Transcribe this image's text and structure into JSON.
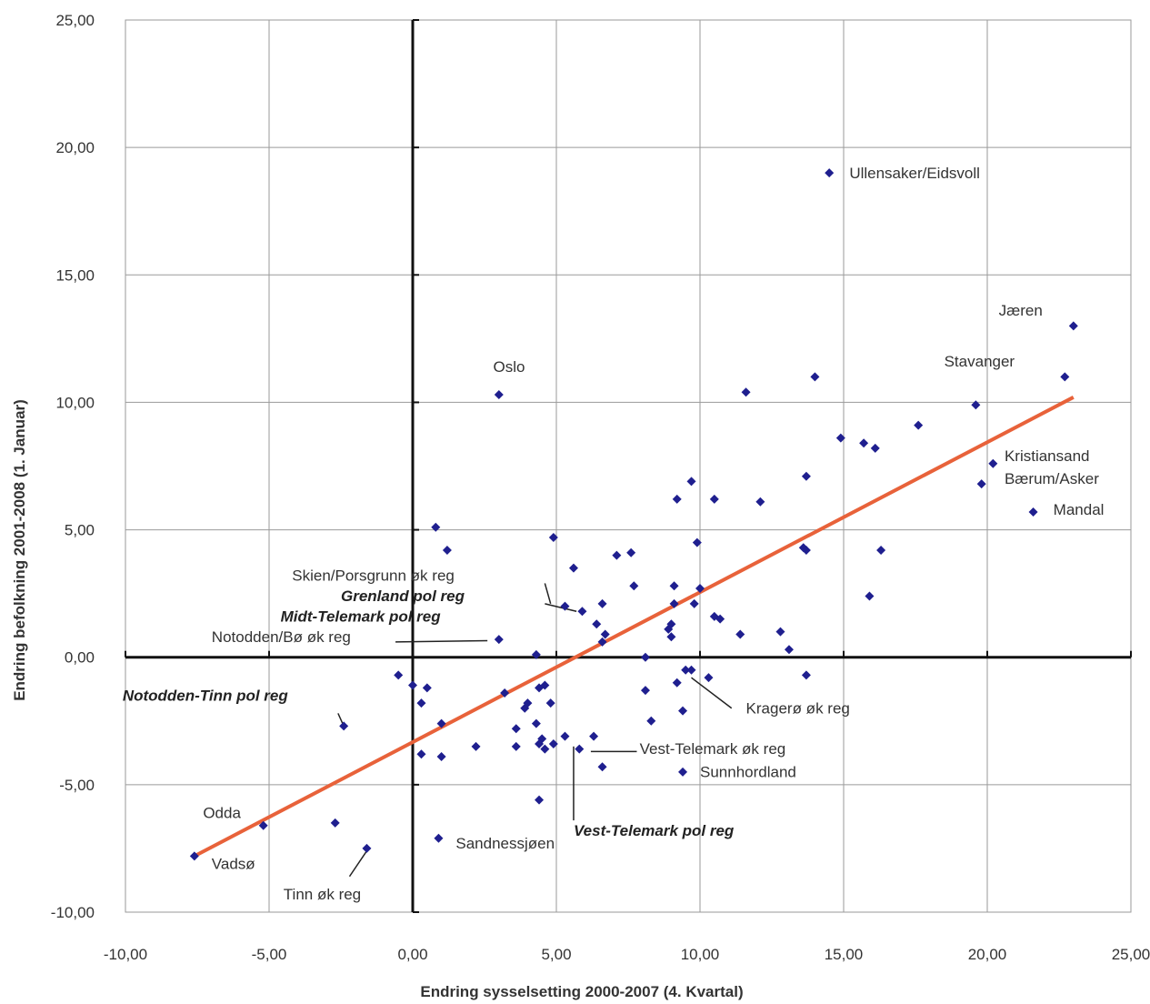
{
  "chart_data": {
    "type": "scatter",
    "title": "",
    "xlabel": "Endring sysselsetting 2000-2007 (4. Kvartal)",
    "ylabel": "Endring befolkning 2001-2008 (1. Januar)",
    "xlim": [
      -10,
      25
    ],
    "ylim": [
      -10,
      25
    ],
    "x_ticks": [
      -10,
      -5,
      0,
      5,
      10,
      15,
      20,
      25
    ],
    "y_ticks": [
      -10,
      -5,
      0,
      5,
      10,
      15,
      20,
      25
    ],
    "x_tick_labels": [
      "-10,00",
      "-5,00",
      "0,00",
      "5,00",
      "10,00",
      "15,00",
      "20,00",
      "25,00"
    ],
    "y_tick_labels": [
      "-10,00",
      "-5,00",
      "0,00",
      "5,00",
      "10,00",
      "15,00",
      "20,00",
      "25,00"
    ],
    "grid": true,
    "marker_color": "#1f1f8f",
    "trendline_color": "#e8623a",
    "trendline": {
      "x": [
        -7.6,
        23
      ],
      "y": [
        -7.8,
        10.2
      ]
    },
    "points": [
      [
        14.5,
        19.0
      ],
      [
        23.0,
        13.0
      ],
      [
        22.7,
        11.0
      ],
      [
        14.0,
        11.0
      ],
      [
        11.6,
        10.4
      ],
      [
        3.0,
        10.3
      ],
      [
        19.6,
        9.9
      ],
      [
        17.6,
        9.1
      ],
      [
        14.9,
        8.6
      ],
      [
        15.7,
        8.4
      ],
      [
        16.1,
        8.2
      ],
      [
        20.2,
        7.6
      ],
      [
        13.7,
        7.1
      ],
      [
        9.7,
        6.9
      ],
      [
        19.8,
        6.8
      ],
      [
        9.2,
        6.2
      ],
      [
        10.5,
        6.2
      ],
      [
        12.1,
        6.1
      ],
      [
        21.6,
        5.7
      ],
      [
        0.8,
        5.1
      ],
      [
        4.9,
        4.7
      ],
      [
        9.9,
        4.5
      ],
      [
        13.6,
        4.3
      ],
      [
        13.7,
        4.2
      ],
      [
        1.2,
        4.2
      ],
      [
        16.3,
        4.2
      ],
      [
        7.6,
        4.1
      ],
      [
        7.1,
        4.0
      ],
      [
        5.6,
        3.5
      ],
      [
        7.7,
        2.8
      ],
      [
        9.1,
        2.8
      ],
      [
        10.0,
        2.7
      ],
      [
        15.9,
        2.4
      ],
      [
        6.6,
        2.1
      ],
      [
        9.1,
        2.1
      ],
      [
        9.8,
        2.1
      ],
      [
        5.3,
        2.0
      ],
      [
        5.9,
        1.8
      ],
      [
        10.5,
        1.6
      ],
      [
        10.7,
        1.5
      ],
      [
        6.4,
        1.3
      ],
      [
        9.0,
        1.3
      ],
      [
        8.9,
        1.1
      ],
      [
        6.7,
        0.9
      ],
      [
        12.8,
        1.0
      ],
      [
        11.4,
        0.9
      ],
      [
        3.0,
        0.7
      ],
      [
        9.0,
        0.8
      ],
      [
        6.6,
        0.6
      ],
      [
        13.1,
        0.3
      ],
      [
        4.3,
        0.1
      ],
      [
        8.1,
        0.0
      ],
      [
        9.5,
        -0.5
      ],
      [
        9.7,
        -0.5
      ],
      [
        10.3,
        -0.8
      ],
      [
        13.7,
        -0.7
      ],
      [
        -0.5,
        -0.7
      ],
      [
        0.0,
        -1.1
      ],
      [
        0.5,
        -1.2
      ],
      [
        4.4,
        -1.2
      ],
      [
        4.6,
        -1.1
      ],
      [
        9.2,
        -1.0
      ],
      [
        8.1,
        -1.3
      ],
      [
        3.2,
        -1.4
      ],
      [
        0.3,
        -1.8
      ],
      [
        4.0,
        -1.8
      ],
      [
        3.9,
        -2.0
      ],
      [
        4.8,
        -1.8
      ],
      [
        9.4,
        -2.1
      ],
      [
        8.3,
        -2.5
      ],
      [
        1.0,
        -2.6
      ],
      [
        4.3,
        -2.6
      ],
      [
        -2.4,
        -2.7
      ],
      [
        3.6,
        -2.8
      ],
      [
        4.5,
        -3.2
      ],
      [
        5.3,
        -3.1
      ],
      [
        6.3,
        -3.1
      ],
      [
        4.4,
        -3.4
      ],
      [
        4.9,
        -3.4
      ],
      [
        3.6,
        -3.5
      ],
      [
        2.2,
        -3.5
      ],
      [
        4.6,
        -3.6
      ],
      [
        5.8,
        -3.6
      ],
      [
        0.3,
        -3.8
      ],
      [
        1.0,
        -3.9
      ],
      [
        6.6,
        -4.3
      ],
      [
        9.4,
        -4.5
      ],
      [
        4.4,
        -5.6
      ],
      [
        -5.2,
        -6.6
      ],
      [
        -2.7,
        -6.5
      ],
      [
        0.9,
        -7.1
      ],
      [
        -1.6,
        -7.5
      ],
      [
        -7.6,
        -7.8
      ]
    ],
    "annotations": [
      {
        "text": "Ullensaker/Eidsvoll",
        "x": 15.2,
        "y": 18.8,
        "bold": false
      },
      {
        "text": "Jæren",
        "x": 20.4,
        "y": 13.4,
        "bold": false
      },
      {
        "text": "Stavanger",
        "x": 18.5,
        "y": 11.4,
        "bold": false
      },
      {
        "text": "Oslo",
        "x": 2.8,
        "y": 11.2,
        "bold": false
      },
      {
        "text": "Kristiansand",
        "x": 20.6,
        "y": 7.7,
        "bold": false
      },
      {
        "text": "Bærum/Asker",
        "x": 20.6,
        "y": 6.8,
        "bold": false
      },
      {
        "text": "Mandal",
        "x": 22.3,
        "y": 5.6,
        "bold": false
      },
      {
        "text": "Skien/Porsgrunn øk reg",
        "x": -4.2,
        "y": 3.0,
        "bold": false
      },
      {
        "text": "Grenland pol reg",
        "x": -2.5,
        "y": 2.2,
        "bold": true
      },
      {
        "text": "Midt-Telemark pol reg",
        "x": -4.6,
        "y": 1.4,
        "bold": true
      },
      {
        "text": "Notodden/Bø øk reg",
        "x": -7.0,
        "y": 0.6,
        "bold": false
      },
      {
        "text": "Notodden-Tinn pol reg",
        "x": -10.1,
        "y": -1.7,
        "bold": true
      },
      {
        "text": "Kragerø øk reg",
        "x": 11.6,
        "y": -2.2,
        "bold": false
      },
      {
        "text": "Vest-Telemark øk reg",
        "x": 7.9,
        "y": -3.8,
        "bold": false
      },
      {
        "text": "Sunnhordland",
        "x": 10.0,
        "y": -4.7,
        "bold": false
      },
      {
        "text": "Vest-Telemark pol reg",
        "x": 5.6,
        "y": -7.0,
        "bold": true
      },
      {
        "text": "Odda",
        "x": -7.3,
        "y": -6.3,
        "bold": false
      },
      {
        "text": "Vadsø",
        "x": -7.0,
        "y": -8.3,
        "bold": false
      },
      {
        "text": "Sandnessjøen",
        "x": 1.5,
        "y": -7.5,
        "bold": false
      },
      {
        "text": "Tinn øk reg",
        "x": -4.5,
        "y": -9.5,
        "bold": false
      }
    ],
    "leader_lines": [
      {
        "from": [
          4.6,
          2.9
        ],
        "to": [
          4.8,
          2.1
        ]
      },
      {
        "from": [
          4.6,
          2.1
        ],
        "to": [
          5.7,
          1.8
        ]
      },
      {
        "from": [
          -0.6,
          0.6
        ],
        "to": [
          2.6,
          0.65
        ]
      },
      {
        "from": [
          -2.6,
          -2.2
        ],
        "to": [
          -2.4,
          -2.7
        ]
      },
      {
        "from": [
          9.7,
          -0.8
        ],
        "to": [
          11.1,
          -2.0
        ]
      },
      {
        "from": [
          6.2,
          -3.7
        ],
        "to": [
          7.8,
          -3.7
        ]
      },
      {
        "from": [
          5.6,
          -3.5
        ],
        "to": [
          5.6,
          -6.4
        ]
      },
      {
        "from": [
          -2.2,
          -8.6
        ],
        "to": [
          -1.6,
          -7.6
        ]
      }
    ]
  }
}
